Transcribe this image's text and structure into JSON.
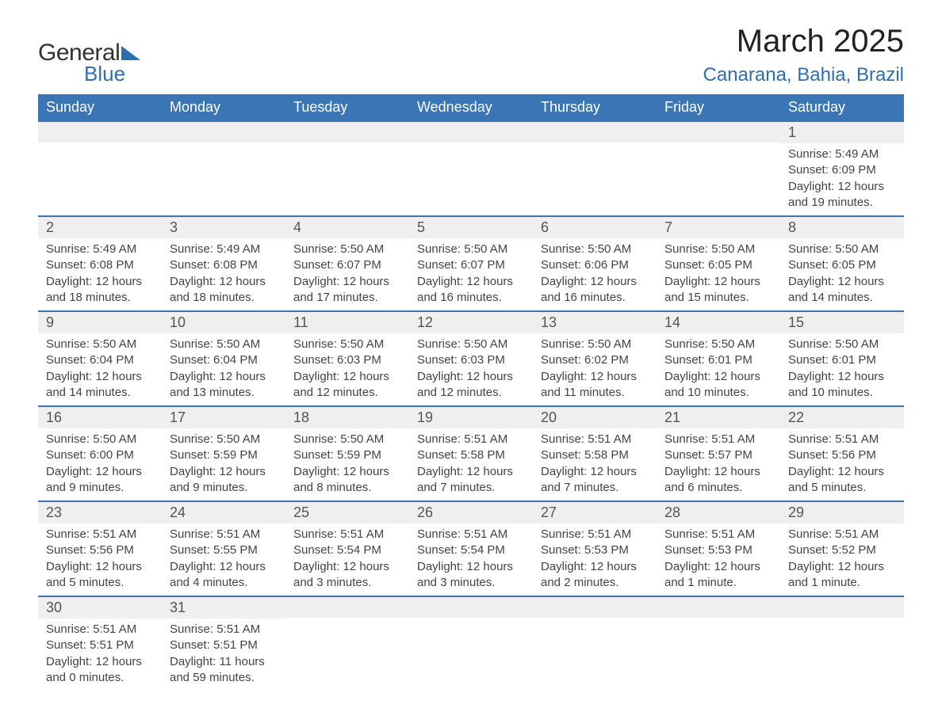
{
  "logo": {
    "word1": "General",
    "word2": "Blue"
  },
  "title": "March 2025",
  "location": "Canarana, Bahia, Brazil",
  "colors": {
    "header_bg": "#3a76b6",
    "header_text": "#ffffff",
    "row_divider": "#3a76b6",
    "daynum_bg": "#efefef",
    "daynum_text": "#555555",
    "body_text": "#444444",
    "brand_blue": "#2e6eb0",
    "page_bg": "#ffffff"
  },
  "typography": {
    "title_fontsize": 40,
    "location_fontsize": 24,
    "header_fontsize": 18,
    "daynum_fontsize": 18,
    "body_fontsize": 15,
    "logo_fontsize": 30
  },
  "layout": {
    "columns": 7,
    "rows": 6,
    "first_day_column_index": 6
  },
  "weekdays": [
    "Sunday",
    "Monday",
    "Tuesday",
    "Wednesday",
    "Thursday",
    "Friday",
    "Saturday"
  ],
  "weeks": [
    [
      null,
      null,
      null,
      null,
      null,
      null,
      {
        "n": "1",
        "sunrise": "Sunrise: 5:49 AM",
        "sunset": "Sunset: 6:09 PM",
        "daylight1": "Daylight: 12 hours",
        "daylight2": "and 19 minutes."
      }
    ],
    [
      {
        "n": "2",
        "sunrise": "Sunrise: 5:49 AM",
        "sunset": "Sunset: 6:08 PM",
        "daylight1": "Daylight: 12 hours",
        "daylight2": "and 18 minutes."
      },
      {
        "n": "3",
        "sunrise": "Sunrise: 5:49 AM",
        "sunset": "Sunset: 6:08 PM",
        "daylight1": "Daylight: 12 hours",
        "daylight2": "and 18 minutes."
      },
      {
        "n": "4",
        "sunrise": "Sunrise: 5:50 AM",
        "sunset": "Sunset: 6:07 PM",
        "daylight1": "Daylight: 12 hours",
        "daylight2": "and 17 minutes."
      },
      {
        "n": "5",
        "sunrise": "Sunrise: 5:50 AM",
        "sunset": "Sunset: 6:07 PM",
        "daylight1": "Daylight: 12 hours",
        "daylight2": "and 16 minutes."
      },
      {
        "n": "6",
        "sunrise": "Sunrise: 5:50 AM",
        "sunset": "Sunset: 6:06 PM",
        "daylight1": "Daylight: 12 hours",
        "daylight2": "and 16 minutes."
      },
      {
        "n": "7",
        "sunrise": "Sunrise: 5:50 AM",
        "sunset": "Sunset: 6:05 PM",
        "daylight1": "Daylight: 12 hours",
        "daylight2": "and 15 minutes."
      },
      {
        "n": "8",
        "sunrise": "Sunrise: 5:50 AM",
        "sunset": "Sunset: 6:05 PM",
        "daylight1": "Daylight: 12 hours",
        "daylight2": "and 14 minutes."
      }
    ],
    [
      {
        "n": "9",
        "sunrise": "Sunrise: 5:50 AM",
        "sunset": "Sunset: 6:04 PM",
        "daylight1": "Daylight: 12 hours",
        "daylight2": "and 14 minutes."
      },
      {
        "n": "10",
        "sunrise": "Sunrise: 5:50 AM",
        "sunset": "Sunset: 6:04 PM",
        "daylight1": "Daylight: 12 hours",
        "daylight2": "and 13 minutes."
      },
      {
        "n": "11",
        "sunrise": "Sunrise: 5:50 AM",
        "sunset": "Sunset: 6:03 PM",
        "daylight1": "Daylight: 12 hours",
        "daylight2": "and 12 minutes."
      },
      {
        "n": "12",
        "sunrise": "Sunrise: 5:50 AM",
        "sunset": "Sunset: 6:03 PM",
        "daylight1": "Daylight: 12 hours",
        "daylight2": "and 12 minutes."
      },
      {
        "n": "13",
        "sunrise": "Sunrise: 5:50 AM",
        "sunset": "Sunset: 6:02 PM",
        "daylight1": "Daylight: 12 hours",
        "daylight2": "and 11 minutes."
      },
      {
        "n": "14",
        "sunrise": "Sunrise: 5:50 AM",
        "sunset": "Sunset: 6:01 PM",
        "daylight1": "Daylight: 12 hours",
        "daylight2": "and 10 minutes."
      },
      {
        "n": "15",
        "sunrise": "Sunrise: 5:50 AM",
        "sunset": "Sunset: 6:01 PM",
        "daylight1": "Daylight: 12 hours",
        "daylight2": "and 10 minutes."
      }
    ],
    [
      {
        "n": "16",
        "sunrise": "Sunrise: 5:50 AM",
        "sunset": "Sunset: 6:00 PM",
        "daylight1": "Daylight: 12 hours",
        "daylight2": "and 9 minutes."
      },
      {
        "n": "17",
        "sunrise": "Sunrise: 5:50 AM",
        "sunset": "Sunset: 5:59 PM",
        "daylight1": "Daylight: 12 hours",
        "daylight2": "and 9 minutes."
      },
      {
        "n": "18",
        "sunrise": "Sunrise: 5:50 AM",
        "sunset": "Sunset: 5:59 PM",
        "daylight1": "Daylight: 12 hours",
        "daylight2": "and 8 minutes."
      },
      {
        "n": "19",
        "sunrise": "Sunrise: 5:51 AM",
        "sunset": "Sunset: 5:58 PM",
        "daylight1": "Daylight: 12 hours",
        "daylight2": "and 7 minutes."
      },
      {
        "n": "20",
        "sunrise": "Sunrise: 5:51 AM",
        "sunset": "Sunset: 5:58 PM",
        "daylight1": "Daylight: 12 hours",
        "daylight2": "and 7 minutes."
      },
      {
        "n": "21",
        "sunrise": "Sunrise: 5:51 AM",
        "sunset": "Sunset: 5:57 PM",
        "daylight1": "Daylight: 12 hours",
        "daylight2": "and 6 minutes."
      },
      {
        "n": "22",
        "sunrise": "Sunrise: 5:51 AM",
        "sunset": "Sunset: 5:56 PM",
        "daylight1": "Daylight: 12 hours",
        "daylight2": "and 5 minutes."
      }
    ],
    [
      {
        "n": "23",
        "sunrise": "Sunrise: 5:51 AM",
        "sunset": "Sunset: 5:56 PM",
        "daylight1": "Daylight: 12 hours",
        "daylight2": "and 5 minutes."
      },
      {
        "n": "24",
        "sunrise": "Sunrise: 5:51 AM",
        "sunset": "Sunset: 5:55 PM",
        "daylight1": "Daylight: 12 hours",
        "daylight2": "and 4 minutes."
      },
      {
        "n": "25",
        "sunrise": "Sunrise: 5:51 AM",
        "sunset": "Sunset: 5:54 PM",
        "daylight1": "Daylight: 12 hours",
        "daylight2": "and 3 minutes."
      },
      {
        "n": "26",
        "sunrise": "Sunrise: 5:51 AM",
        "sunset": "Sunset: 5:54 PM",
        "daylight1": "Daylight: 12 hours",
        "daylight2": "and 3 minutes."
      },
      {
        "n": "27",
        "sunrise": "Sunrise: 5:51 AM",
        "sunset": "Sunset: 5:53 PM",
        "daylight1": "Daylight: 12 hours",
        "daylight2": "and 2 minutes."
      },
      {
        "n": "28",
        "sunrise": "Sunrise: 5:51 AM",
        "sunset": "Sunset: 5:53 PM",
        "daylight1": "Daylight: 12 hours",
        "daylight2": "and 1 minute."
      },
      {
        "n": "29",
        "sunrise": "Sunrise: 5:51 AM",
        "sunset": "Sunset: 5:52 PM",
        "daylight1": "Daylight: 12 hours",
        "daylight2": "and 1 minute."
      }
    ],
    [
      {
        "n": "30",
        "sunrise": "Sunrise: 5:51 AM",
        "sunset": "Sunset: 5:51 PM",
        "daylight1": "Daylight: 12 hours",
        "daylight2": "and 0 minutes."
      },
      {
        "n": "31",
        "sunrise": "Sunrise: 5:51 AM",
        "sunset": "Sunset: 5:51 PM",
        "daylight1": "Daylight: 11 hours",
        "daylight2": "and 59 minutes."
      },
      null,
      null,
      null,
      null,
      null
    ]
  ]
}
